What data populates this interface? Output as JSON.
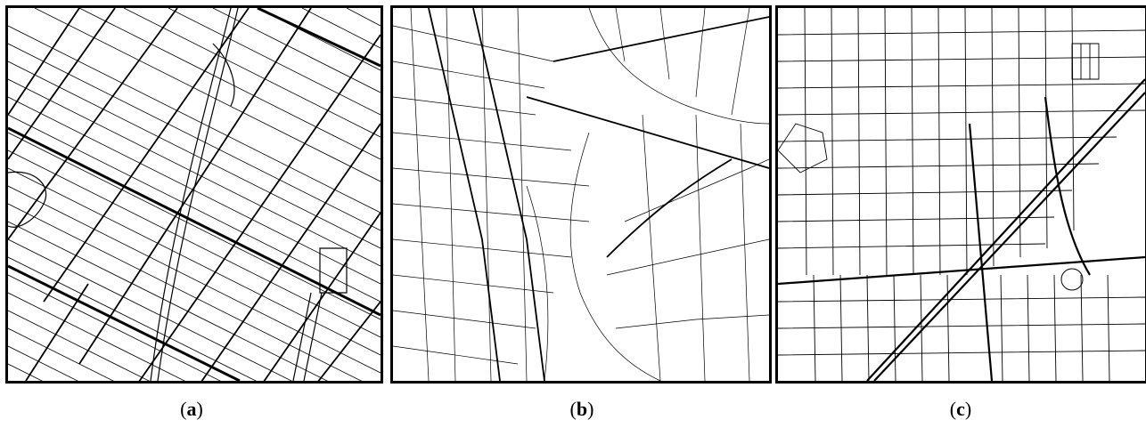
{
  "panels": [
    {
      "id": "a",
      "caption_letter": "a"
    },
    {
      "id": "b",
      "caption_letter": "b"
    },
    {
      "id": "c",
      "caption_letter": "c"
    }
  ],
  "captions": {
    "a": "a",
    "b": "b",
    "c": "c"
  },
  "colors": {
    "road": "#000000",
    "background": "#ffffff",
    "border": "#000000"
  }
}
